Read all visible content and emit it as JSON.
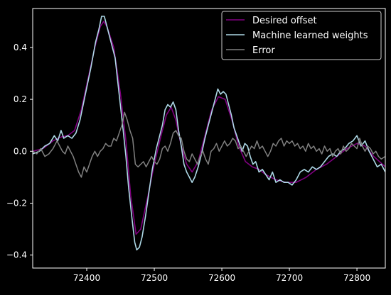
{
  "chart_data": {
    "type": "line",
    "title": "",
    "xlabel": "",
    "ylabel": "",
    "xlim": [
      72320,
      72842
    ],
    "ylim": [
      -0.45,
      0.55
    ],
    "x_ticks": [
      72400,
      72500,
      72600,
      72700,
      72800
    ],
    "y_ticks": [
      -0.4,
      -0.2,
      0.0,
      0.2,
      0.4
    ],
    "x_tick_labels": [
      "72400",
      "72500",
      "72600",
      "72700",
      "72800"
    ],
    "y_tick_labels": [
      "−0.4",
      "−0.2",
      "0.0",
      "0.2",
      "0.4"
    ],
    "grid": false,
    "legend_position": "top-right",
    "background": "#000000",
    "axis_color": "#ffffff",
    "series": [
      {
        "name": "Desired offset",
        "color": "#800080",
        "points": [
          [
            72320,
            0.0
          ],
          [
            72335,
            0.01
          ],
          [
            72350,
            0.04
          ],
          [
            72362,
            0.055
          ],
          [
            72372,
            0.06
          ],
          [
            72382,
            0.08
          ],
          [
            72392,
            0.16
          ],
          [
            72402,
            0.28
          ],
          [
            72412,
            0.4
          ],
          [
            72420,
            0.48
          ],
          [
            72425,
            0.5
          ],
          [
            72430,
            0.48
          ],
          [
            72440,
            0.4
          ],
          [
            72450,
            0.22
          ],
          [
            72458,
            0.04
          ],
          [
            72465,
            -0.17
          ],
          [
            72473,
            -0.32
          ],
          [
            72480,
            -0.3
          ],
          [
            72490,
            -0.18
          ],
          [
            72500,
            -0.05
          ],
          [
            72510,
            0.06
          ],
          [
            72518,
            0.14
          ],
          [
            72525,
            0.17
          ],
          [
            72532,
            0.12
          ],
          [
            72540,
            0.02
          ],
          [
            72548,
            -0.05
          ],
          [
            72556,
            -0.08
          ],
          [
            72565,
            -0.04
          ],
          [
            72575,
            0.06
          ],
          [
            72585,
            0.16
          ],
          [
            72595,
            0.21
          ],
          [
            72605,
            0.2
          ],
          [
            72615,
            0.12
          ],
          [
            72625,
            0.02
          ],
          [
            72635,
            -0.04
          ],
          [
            72645,
            -0.06
          ],
          [
            72655,
            -0.07
          ],
          [
            72665,
            -0.09
          ],
          [
            72680,
            -0.11
          ],
          [
            72695,
            -0.12
          ],
          [
            72710,
            -0.12
          ],
          [
            72725,
            -0.1
          ],
          [
            72740,
            -0.07
          ],
          [
            72755,
            -0.05
          ],
          [
            72770,
            -0.02
          ],
          [
            72785,
            0.01
          ],
          [
            72800,
            0.03
          ],
          [
            72812,
            0.02
          ],
          [
            72825,
            -0.02
          ],
          [
            72842,
            -0.06
          ]
        ]
      },
      {
        "name": "Machine learned weights",
        "color": "#add8e6",
        "points": [
          [
            72320,
            -0.01
          ],
          [
            72330,
            0.0
          ],
          [
            72338,
            0.02
          ],
          [
            72345,
            0.03
          ],
          [
            72352,
            0.06
          ],
          [
            72357,
            0.04
          ],
          [
            72362,
            0.08
          ],
          [
            72366,
            0.05
          ],
          [
            72372,
            0.06
          ],
          [
            72378,
            0.05
          ],
          [
            72384,
            0.07
          ],
          [
            72390,
            0.12
          ],
          [
            72398,
            0.22
          ],
          [
            72406,
            0.32
          ],
          [
            72413,
            0.42
          ],
          [
            72418,
            0.47
          ],
          [
            72422,
            0.52
          ],
          [
            72426,
            0.52
          ],
          [
            72430,
            0.48
          ],
          [
            72436,
            0.42
          ],
          [
            72442,
            0.36
          ],
          [
            72448,
            0.22
          ],
          [
            72454,
            0.08
          ],
          [
            72458,
            -0.02
          ],
          [
            72462,
            -0.14
          ],
          [
            72467,
            -0.26
          ],
          [
            72471,
            -0.35
          ],
          [
            72474,
            -0.38
          ],
          [
            72478,
            -0.37
          ],
          [
            72482,
            -0.33
          ],
          [
            72487,
            -0.25
          ],
          [
            72492,
            -0.16
          ],
          [
            72497,
            -0.07
          ],
          [
            72503,
            0.01
          ],
          [
            72508,
            0.06
          ],
          [
            72512,
            0.1
          ],
          [
            72516,
            0.16
          ],
          [
            72520,
            0.18
          ],
          [
            72524,
            0.17
          ],
          [
            72528,
            0.19
          ],
          [
            72532,
            0.16
          ],
          [
            72536,
            0.08
          ],
          [
            72540,
            0.02
          ],
          [
            72544,
            -0.05
          ],
          [
            72548,
            -0.08
          ],
          [
            72552,
            -0.1
          ],
          [
            72556,
            -0.12
          ],
          [
            72560,
            -0.1
          ],
          [
            72565,
            -0.06
          ],
          [
            72570,
            -0.01
          ],
          [
            72575,
            0.05
          ],
          [
            72580,
            0.1
          ],
          [
            72585,
            0.15
          ],
          [
            72590,
            0.2
          ],
          [
            72594,
            0.24
          ],
          [
            72598,
            0.22
          ],
          [
            72602,
            0.23
          ],
          [
            72606,
            0.22
          ],
          [
            72610,
            0.18
          ],
          [
            72614,
            0.14
          ],
          [
            72618,
            0.09
          ],
          [
            72622,
            0.06
          ],
          [
            72626,
            0.03
          ],
          [
            72630,
            0.0
          ],
          [
            72634,
            0.03
          ],
          [
            72638,
            0.02
          ],
          [
            72642,
            -0.02
          ],
          [
            72646,
            -0.05
          ],
          [
            72650,
            -0.04
          ],
          [
            72655,
            -0.08
          ],
          [
            72660,
            -0.07
          ],
          [
            72665,
            -0.09
          ],
          [
            72670,
            -0.11
          ],
          [
            72675,
            -0.08
          ],
          [
            72680,
            -0.12
          ],
          [
            72686,
            -0.11
          ],
          [
            72692,
            -0.12
          ],
          [
            72698,
            -0.12
          ],
          [
            72704,
            -0.13
          ],
          [
            72710,
            -0.11
          ],
          [
            72716,
            -0.08
          ],
          [
            72722,
            -0.07
          ],
          [
            72728,
            -0.08
          ],
          [
            72734,
            -0.06
          ],
          [
            72740,
            -0.07
          ],
          [
            72746,
            -0.06
          ],
          [
            72752,
            -0.04
          ],
          [
            72758,
            -0.02
          ],
          [
            72764,
            -0.01
          ],
          [
            72770,
            -0.02
          ],
          [
            72776,
            0.0
          ],
          [
            72782,
            0.01
          ],
          [
            72788,
            0.03
          ],
          [
            72794,
            0.04
          ],
          [
            72800,
            0.06
          ],
          [
            72806,
            0.02
          ],
          [
            72812,
            0.04
          ],
          [
            72818,
            0.0
          ],
          [
            72824,
            -0.03
          ],
          [
            72830,
            -0.06
          ],
          [
            72836,
            -0.05
          ],
          [
            72842,
            -0.08
          ]
        ]
      },
      {
        "name": "Error",
        "color": "#808080",
        "points": [
          [
            72320,
            0.0
          ],
          [
            72326,
            -0.01
          ],
          [
            72332,
            0.01
          ],
          [
            72338,
            -0.02
          ],
          [
            72344,
            -0.01
          ],
          [
            72350,
            0.01
          ],
          [
            72356,
            0.04
          ],
          [
            72360,
            0.02
          ],
          [
            72364,
            0.0
          ],
          [
            72368,
            -0.01
          ],
          [
            72372,
            0.02
          ],
          [
            72376,
            0.0
          ],
          [
            72380,
            -0.02
          ],
          [
            72384,
            -0.05
          ],
          [
            72388,
            -0.08
          ],
          [
            72392,
            -0.1
          ],
          [
            72396,
            -0.06
          ],
          [
            72400,
            -0.08
          ],
          [
            72404,
            -0.05
          ],
          [
            72408,
            -0.02
          ],
          [
            72412,
            0.0
          ],
          [
            72416,
            -0.02
          ],
          [
            72420,
            0.0
          ],
          [
            72424,
            0.01
          ],
          [
            72428,
            0.03
          ],
          [
            72432,
            0.02
          ],
          [
            72436,
            0.02
          ],
          [
            72440,
            0.05
          ],
          [
            72444,
            0.04
          ],
          [
            72448,
            0.07
          ],
          [
            72452,
            0.1
          ],
          [
            72456,
            0.15
          ],
          [
            72460,
            0.12
          ],
          [
            72464,
            0.08
          ],
          [
            72468,
            0.05
          ],
          [
            72472,
            -0.05
          ],
          [
            72476,
            -0.06
          ],
          [
            72480,
            -0.05
          ],
          [
            72484,
            -0.04
          ],
          [
            72488,
            -0.06
          ],
          [
            72492,
            -0.04
          ],
          [
            72496,
            -0.02
          ],
          [
            72500,
            -0.04
          ],
          [
            72504,
            -0.05
          ],
          [
            72508,
            -0.03
          ],
          [
            72512,
            0.01
          ],
          [
            72516,
            0.02
          ],
          [
            72520,
            0.0
          ],
          [
            72524,
            0.03
          ],
          [
            72528,
            0.07
          ],
          [
            72532,
            0.08
          ],
          [
            72536,
            0.06
          ],
          [
            72540,
            0.05
          ],
          [
            72544,
            0.0
          ],
          [
            72548,
            -0.03
          ],
          [
            72552,
            -0.04
          ],
          [
            72556,
            -0.01
          ],
          [
            72560,
            -0.03
          ],
          [
            72564,
            -0.05
          ],
          [
            72568,
            -0.02
          ],
          [
            72572,
            0.0
          ],
          [
            72576,
            -0.03
          ],
          [
            72580,
            -0.05
          ],
          [
            72584,
            0.0
          ],
          [
            72588,
            0.01
          ],
          [
            72592,
            0.03
          ],
          [
            72596,
            0.0
          ],
          [
            72600,
            0.02
          ],
          [
            72604,
            0.04
          ],
          [
            72608,
            0.02
          ],
          [
            72612,
            0.03
          ],
          [
            72616,
            0.05
          ],
          [
            72620,
            0.04
          ],
          [
            72624,
            0.01
          ],
          [
            72628,
            0.02
          ],
          [
            72632,
            0.0
          ],
          [
            72636,
            -0.02
          ],
          [
            72640,
            0.0
          ],
          [
            72644,
            0.02
          ],
          [
            72648,
            0.01
          ],
          [
            72652,
            0.04
          ],
          [
            72656,
            0.01
          ],
          [
            72660,
            0.02
          ],
          [
            72664,
            0.0
          ],
          [
            72668,
            -0.02
          ],
          [
            72672,
            0.0
          ],
          [
            72676,
            0.03
          ],
          [
            72680,
            0.02
          ],
          [
            72684,
            0.04
          ],
          [
            72688,
            0.05
          ],
          [
            72692,
            0.02
          ],
          [
            72696,
            0.04
          ],
          [
            72700,
            0.03
          ],
          [
            72704,
            0.04
          ],
          [
            72708,
            0.02
          ],
          [
            72712,
            0.03
          ],
          [
            72716,
            0.01
          ],
          [
            72720,
            0.02
          ],
          [
            72724,
            0.0
          ],
          [
            72728,
            0.03
          ],
          [
            72732,
            0.01
          ],
          [
            72736,
            0.02
          ],
          [
            72740,
            0.0
          ],
          [
            72744,
            0.01
          ],
          [
            72748,
            -0.01
          ],
          [
            72752,
            0.02
          ],
          [
            72756,
            0.0
          ],
          [
            72760,
            0.01
          ],
          [
            72764,
            -0.02
          ],
          [
            72768,
            0.0
          ],
          [
            72772,
            0.01
          ],
          [
            72776,
            -0.01
          ],
          [
            72780,
            0.02
          ],
          [
            72784,
            0.0
          ],
          [
            72788,
            0.01
          ],
          [
            72792,
            0.03
          ],
          [
            72796,
            0.02
          ],
          [
            72800,
            0.01
          ],
          [
            72804,
            0.05
          ],
          [
            72808,
            0.02
          ],
          [
            72812,
            0.0
          ],
          [
            72816,
            0.02
          ],
          [
            72820,
            0.01
          ],
          [
            72824,
            -0.01
          ],
          [
            72828,
            0.0
          ],
          [
            72832,
            -0.02
          ],
          [
            72836,
            -0.03
          ],
          [
            72842,
            -0.02
          ]
        ]
      }
    ]
  }
}
